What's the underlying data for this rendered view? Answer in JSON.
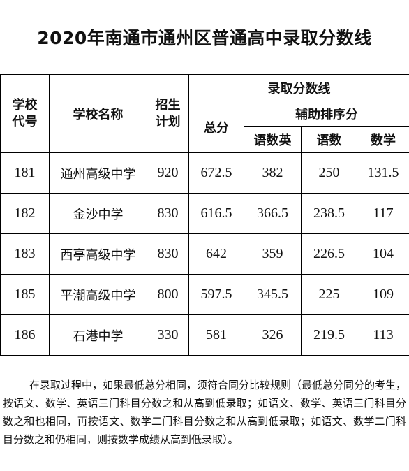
{
  "title": "2020年南通市通州区普通高中录取分数线",
  "headers": {
    "code": "学校代号",
    "name": "学校名称",
    "plan": "招生计划",
    "score_line": "录取分数线",
    "total": "总分",
    "aux": "辅助排序分",
    "cme": "语数英",
    "cm": "语数",
    "math": "数学"
  },
  "rows": [
    {
      "code": "181",
      "name": "通州高级中学",
      "plan": "920",
      "total": "672.5",
      "cme": "382",
      "cm": "250",
      "math": "131.5"
    },
    {
      "code": "182",
      "name": "金沙中学",
      "plan": "830",
      "total": "616.5",
      "cme": "366.5",
      "cm": "238.5",
      "math": "117"
    },
    {
      "code": "183",
      "name": "西亭高级中学",
      "plan": "830",
      "total": "642",
      "cme": "359",
      "cm": "226.5",
      "math": "104"
    },
    {
      "code": "185",
      "name": "平潮高级中学",
      "plan": "800",
      "total": "597.5",
      "cme": "345.5",
      "cm": "225",
      "math": "109"
    },
    {
      "code": "186",
      "name": "石港中学",
      "plan": "330",
      "total": "581",
      "cme": "326",
      "cm": "219.5",
      "math": "113"
    }
  ],
  "note": "在录取过程中，如果最低总分相同，须符合同分比较规则（最低总分同分的考生，按语文、数学、英语三门科目分数之和从高到低录取；如语文、数学、英语三门科目分数之和也相同，再按语文、数学二门科目分数之和从高到低录取；如语文、数学二门科目分数之和仍相同，则按数学成绩从高到低录取）。"
}
